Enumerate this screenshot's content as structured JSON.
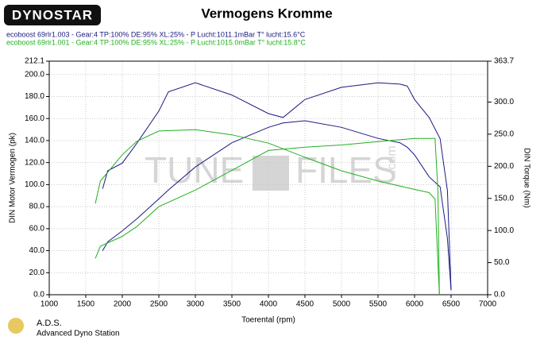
{
  "logo": "DYNOSTAR",
  "footer": {
    "abbr": "A.D.S.",
    "name": "Advanced Dyno Station"
  },
  "watermark": [
    "TUNE",
    "FILES",
    ".com"
  ],
  "chart_data": {
    "type": "line",
    "title": "Vermogens Kromme",
    "x_label": "Toerental (rpm)",
    "y_label": "DIN Motor Vermogen (pk)",
    "y2_label": "DIN Torque (Nm)",
    "xlim": [
      1000,
      7000
    ],
    "xticks": [
      1000,
      1500,
      2000,
      2500,
      3000,
      3500,
      4000,
      4500,
      5000,
      5500,
      6000,
      6500,
      7000
    ],
    "ylim": [
      0,
      212.1
    ],
    "yticks": [
      {
        "value": 0,
        "label": "0.0"
      },
      {
        "value": 20,
        "label": "20.0"
      },
      {
        "value": 40,
        "label": "40.0"
      },
      {
        "value": 60,
        "label": "60.0"
      },
      {
        "value": 80,
        "label": "80.0"
      },
      {
        "value": 100,
        "label": "100.0"
      },
      {
        "value": 120,
        "label": "120.0"
      },
      {
        "value": 140,
        "label": "140.0"
      },
      {
        "value": 160,
        "label": "160.0"
      },
      {
        "value": 180,
        "label": "180.0"
      },
      {
        "value": 200,
        "label": "200.0"
      },
      212.1
    ],
    "y2lim": [
      0,
      363.7
    ],
    "y2ticks": [
      {
        "value": 0,
        "label": "0.0"
      },
      {
        "value": 50,
        "label": "50.0"
      },
      {
        "value": 100,
        "label": "100.0"
      },
      {
        "value": 150,
        "label": "150.0"
      },
      {
        "value": 200,
        "label": "200.0"
      },
      {
        "value": 250,
        "label": "250.0"
      },
      {
        "value": 300,
        "label": "300.0"
      },
      363.7
    ],
    "grid": true,
    "series": [
      {
        "name": "ecoboost 69rlr1.003 - Gear:4 TP:100% DE:95% XL:25%   - P Lucht:1011.1mBar T° lucht:15.6°C",
        "color": "#1a1a80",
        "x": [
          1730,
          1800,
          2000,
          2200,
          2500,
          2630,
          3000,
          3500,
          4000,
          4200,
          4500,
          5000,
          5500,
          5800,
          5900,
          6000,
          6200,
          6350,
          6450,
          6500
        ],
        "values": [
          40,
          48,
          58,
          69,
          87,
          95,
          116,
          138,
          152,
          156,
          158,
          152,
          142,
          138,
          134,
          127,
          107,
          98,
          51,
          4
        ],
        "torque": [
          165,
          193,
          205,
          236,
          286,
          316,
          330,
          311,
          282,
          276,
          304,
          323,
          330,
          328,
          325,
          304,
          276,
          243,
          162,
          7
        ]
      },
      {
        "name": "ecoboost 69rlr1.001 - Gear:4 TP:100% DE:95% XL:25%   - P Lucht:1015.0mBar T° lucht:15.8°C",
        "color": "#22b022",
        "x": [
          1630,
          1700,
          2000,
          2200,
          2500,
          3000,
          3500,
          4000,
          4500,
          5000,
          5500,
          6000,
          6200,
          6280,
          6320,
          6340
        ],
        "values": [
          33,
          44,
          53,
          62,
          80,
          95,
          113,
          131,
          134,
          136,
          139,
          142,
          142,
          142,
          95,
          0
        ],
        "torque": [
          142,
          177,
          218,
          239,
          255,
          257,
          249,
          236,
          214,
          193,
          177,
          164,
          159,
          149,
          50,
          0
        ]
      }
    ]
  }
}
